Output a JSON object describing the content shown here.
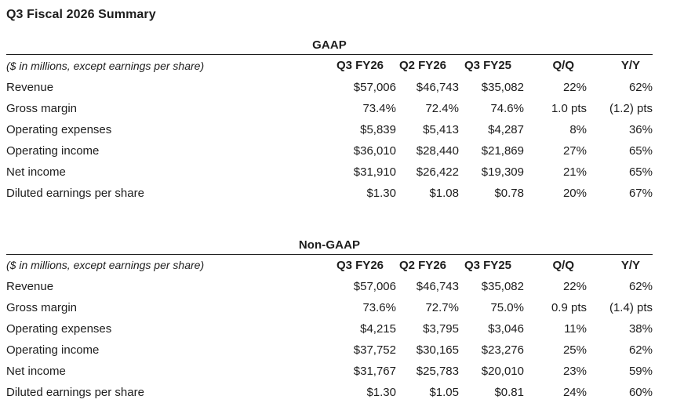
{
  "page": {
    "title": "Q3 Fiscal 2026 Summary"
  },
  "colors": {
    "text": "#1d1d1d",
    "rule": "#1d1d1d",
    "background": "#ffffff"
  },
  "tables": [
    {
      "section": "GAAP",
      "caption": "($ in millions, except earnings per share)",
      "columns": [
        "Q3 FY26",
        "Q2 FY26",
        "Q3 FY25",
        "Q/Q",
        "Y/Y"
      ],
      "rows": [
        {
          "label": "Revenue",
          "values": [
            "$57,006",
            "$46,743",
            "$35,082",
            "22%",
            "62%"
          ]
        },
        {
          "label": "Gross margin",
          "values": [
            "73.4%",
            "72.4%",
            "74.6%",
            "1.0 pts",
            "(1.2) pts"
          ]
        },
        {
          "label": "Operating expenses",
          "values": [
            "$5,839",
            "$5,413",
            "$4,287",
            "8%",
            "36%"
          ]
        },
        {
          "label": "Operating income",
          "values": [
            "$36,010",
            "$28,440",
            "$21,869",
            "27%",
            "65%"
          ]
        },
        {
          "label": "Net income",
          "values": [
            "$31,910",
            "$26,422",
            "$19,309",
            "21%",
            "65%"
          ]
        },
        {
          "label": "Diluted earnings per share",
          "values": [
            "$1.30",
            "$1.08",
            "$0.78",
            "20%",
            "67%"
          ]
        }
      ]
    },
    {
      "section": "Non-GAAP",
      "caption": "($ in millions, except earnings per share)",
      "columns": [
        "Q3 FY26",
        "Q2 FY26",
        "Q3 FY25",
        "Q/Q",
        "Y/Y"
      ],
      "rows": [
        {
          "label": "Revenue",
          "values": [
            "$57,006",
            "$46,743",
            "$35,082",
            "22%",
            "62%"
          ]
        },
        {
          "label": "Gross margin",
          "values": [
            "73.6%",
            "72.7%",
            "75.0%",
            "0.9 pts",
            "(1.4) pts"
          ]
        },
        {
          "label": "Operating expenses",
          "values": [
            "$4,215",
            "$3,795",
            "$3,046",
            "11%",
            "38%"
          ]
        },
        {
          "label": "Operating income",
          "values": [
            "$37,752",
            "$30,165",
            "$23,276",
            "25%",
            "62%"
          ]
        },
        {
          "label": "Net income",
          "values": [
            "$31,767",
            "$25,783",
            "$20,010",
            "23%",
            "59%"
          ]
        },
        {
          "label": "Diluted earnings per share",
          "values": [
            "$1.30",
            "$1.05",
            "$0.81",
            "24%",
            "60%"
          ]
        }
      ]
    }
  ]
}
